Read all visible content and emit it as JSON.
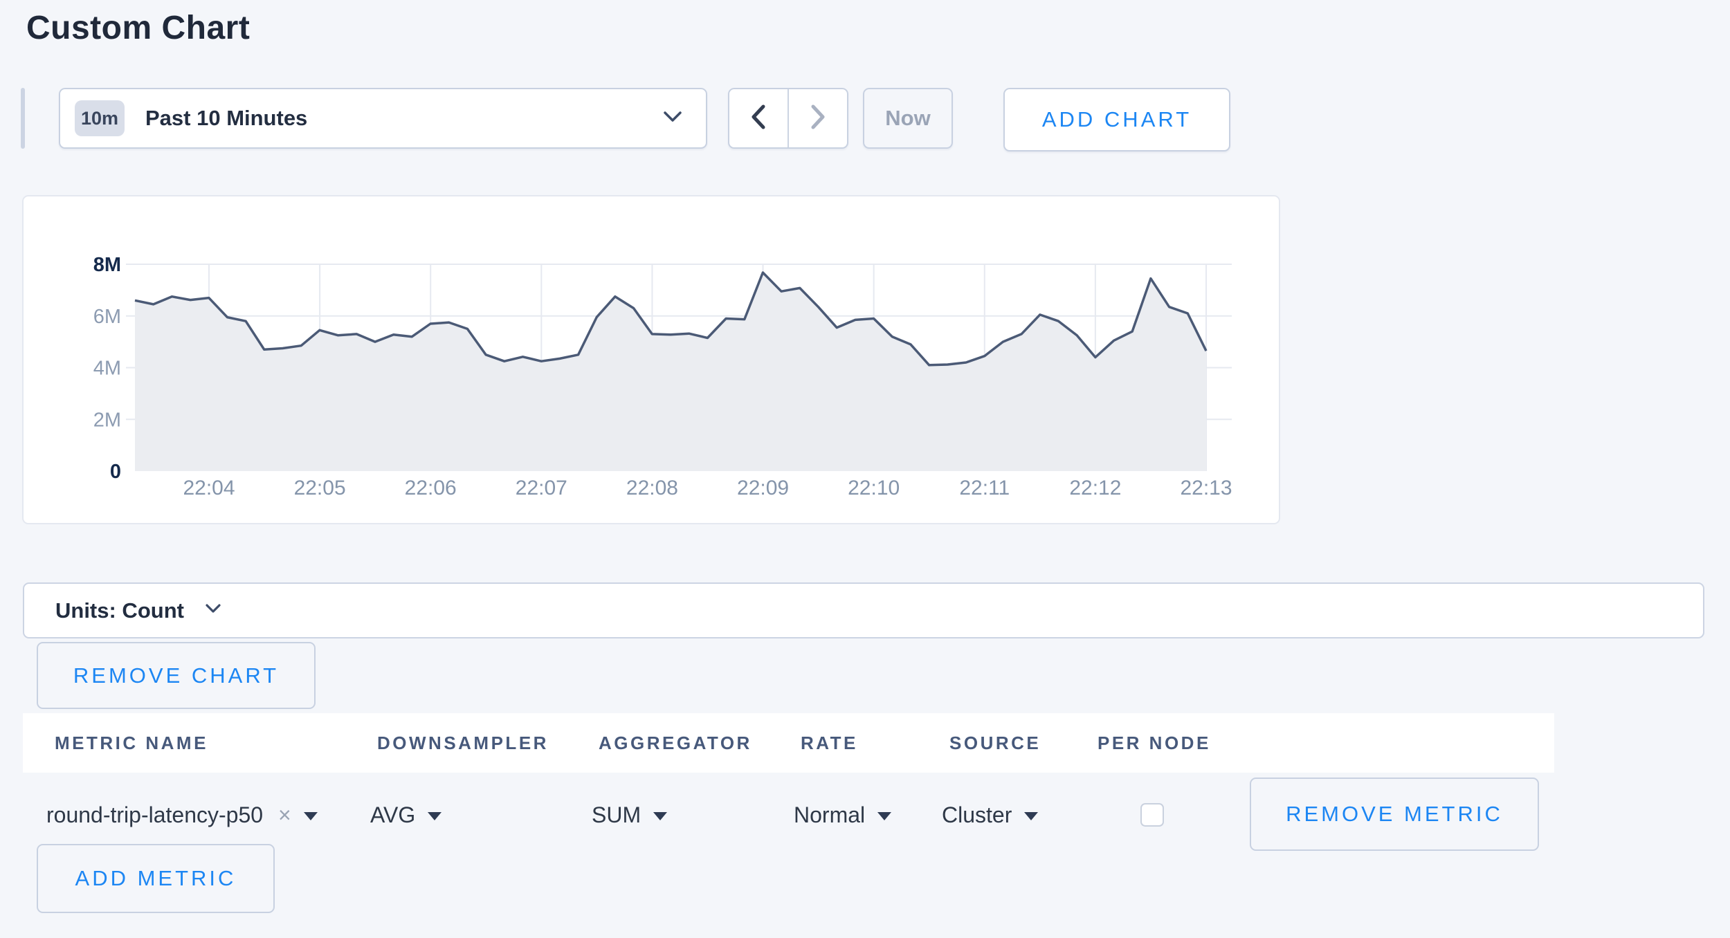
{
  "page": {
    "title": "Custom Chart"
  },
  "toolbar": {
    "range_badge": "10m",
    "range_label": "Past 10 Minutes",
    "now_label": "Now",
    "add_chart_label": "ADD CHART"
  },
  "chart_data": {
    "type": "area",
    "title": "",
    "xlabel": "",
    "ylabel": "",
    "unit": "Count",
    "ylim": [
      0,
      8000000
    ],
    "grid": true,
    "legend": "none",
    "x_ticks": [
      "22:04",
      "22:05",
      "22:06",
      "22:07",
      "22:08",
      "22:09",
      "22:10",
      "22:11",
      "22:12",
      "22:13"
    ],
    "y_ticks": [
      "8M",
      "6M",
      "4M",
      "2M",
      "0"
    ],
    "y_tick_values_millions": [
      8,
      6,
      4,
      2,
      0
    ],
    "start_time": "22:03:20",
    "end_time": "22:13:00",
    "interval_seconds": 10,
    "series": [
      {
        "name": "round-trip-latency-p50",
        "values_millions": [
          6.6,
          6.45,
          6.75,
          6.62,
          6.7,
          5.95,
          5.8,
          4.7,
          4.75,
          4.85,
          5.45,
          5.25,
          5.3,
          5.0,
          5.28,
          5.2,
          5.7,
          5.75,
          5.5,
          4.5,
          4.25,
          4.42,
          4.25,
          4.35,
          4.5,
          5.95,
          6.75,
          6.3,
          5.3,
          5.28,
          5.32,
          5.15,
          5.9,
          5.87,
          7.68,
          6.95,
          7.08,
          6.35,
          5.55,
          5.85,
          5.9,
          5.2,
          4.9,
          4.1,
          4.12,
          4.2,
          4.45,
          5.0,
          5.3,
          6.05,
          5.8,
          5.25,
          4.4,
          5.05,
          5.4,
          7.45,
          6.35,
          6.1,
          4.65
        ]
      }
    ],
    "colors": {
      "line": "#4b5a76",
      "fill": "#ebedf1",
      "grid": "#e6e9f0"
    }
  },
  "units_bar": {
    "label": "Units: Count"
  },
  "chart_actions": {
    "remove_chart_label": "REMOVE CHART"
  },
  "metrics_table": {
    "headers": [
      "METRIC NAME",
      "DOWNSAMPLER",
      "AGGREGATOR",
      "RATE",
      "SOURCE",
      "PER NODE"
    ],
    "rows": [
      {
        "metric_name": "round-trip-latency-p50",
        "downsampler": "AVG",
        "aggregator": "SUM",
        "rate": "Normal",
        "source": "Cluster",
        "per_node_checked": false,
        "remove_label": "REMOVE METRIC"
      }
    ],
    "add_metric_label": "ADD METRIC"
  },
  "icons": {
    "remove_tag": "×"
  },
  "colors": {
    "page_bg": "#f4f6fa",
    "accent_blue": "#1c86f3",
    "navy_text": "#152a4c",
    "muted_text": "#9aa4b6",
    "border": "#c8d1e1"
  }
}
